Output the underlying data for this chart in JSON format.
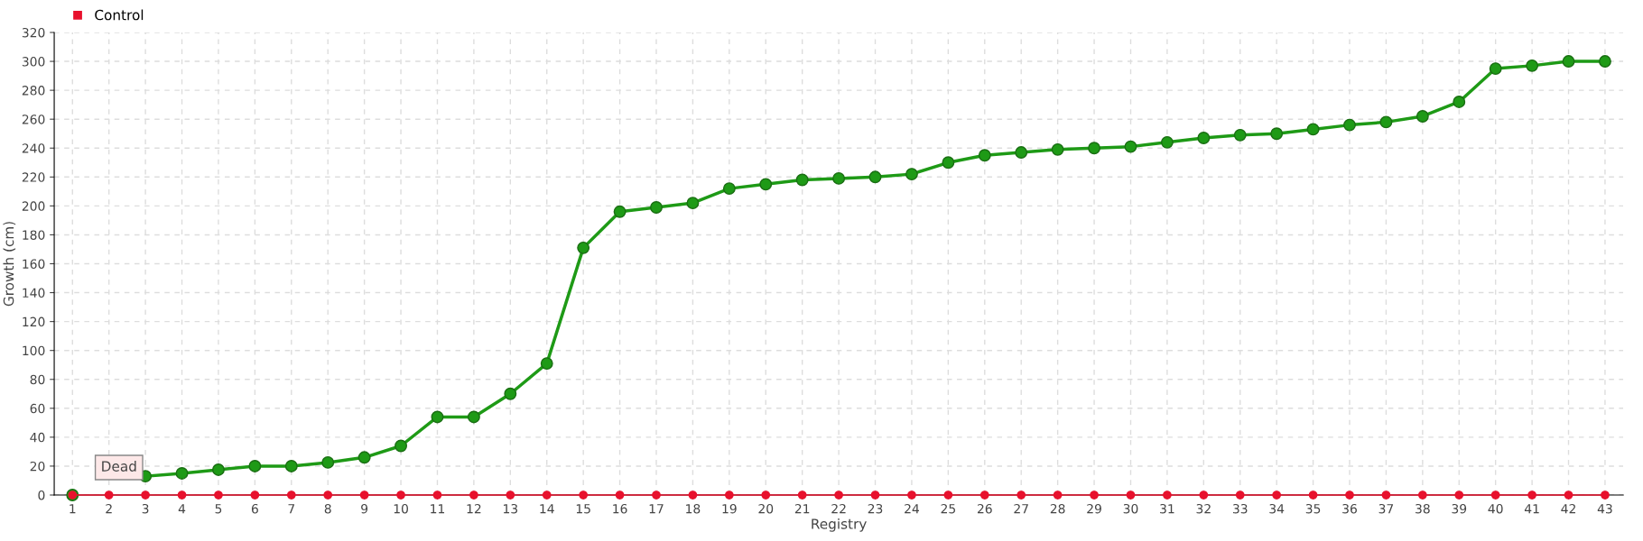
{
  "chart_data": {
    "type": "line",
    "xlabel": "Registry",
    "ylabel": "Growth (cm)",
    "categories": [
      "1",
      "2",
      "3",
      "4",
      "5",
      "6",
      "7",
      "8",
      "9",
      "10",
      "11",
      "12",
      "13",
      "14",
      "15",
      "16",
      "17",
      "18",
      "19",
      "20",
      "21",
      "22",
      "23",
      "24",
      "25",
      "26",
      "27",
      "28",
      "29",
      "30",
      "31",
      "32",
      "33",
      "34",
      "35",
      "36",
      "37",
      "38",
      "39",
      "40",
      "41",
      "42",
      "43"
    ],
    "series": [
      {
        "color": "#1e9a16",
        "values": [
          0,
          null,
          13,
          15,
          17.5,
          20,
          20,
          22.5,
          26,
          34,
          54,
          54,
          70,
          91,
          171,
          196,
          199,
          202,
          212,
          215,
          218,
          219,
          220,
          222,
          230,
          235,
          237,
          239,
          240,
          241,
          244,
          247,
          249,
          250,
          253,
          256,
          258,
          262,
          272,
          295,
          297,
          300,
          300
        ]
      },
      {
        "name": "Control",
        "color": "#e8112d",
        "values": [
          0,
          0,
          0,
          0,
          0,
          0,
          0,
          0,
          0,
          0,
          0,
          0,
          0,
          0,
          0,
          0,
          0,
          0,
          0,
          0,
          0,
          0,
          0,
          0,
          0,
          0,
          0,
          0,
          0,
          0,
          0,
          0,
          0,
          0,
          0,
          0,
          0,
          0,
          0,
          0,
          0,
          0,
          0
        ]
      }
    ],
    "annotations": [
      {
        "text": "Dead",
        "x": "2",
        "y": 0
      }
    ],
    "ylim": [
      0,
      320
    ],
    "yticks": [
      0,
      20,
      40,
      60,
      80,
      100,
      120,
      140,
      160,
      180,
      200,
      220,
      240,
      260,
      280,
      300,
      320
    ],
    "grid": true,
    "legend": "top left",
    "marker": "circle",
    "line_style": "solid"
  }
}
